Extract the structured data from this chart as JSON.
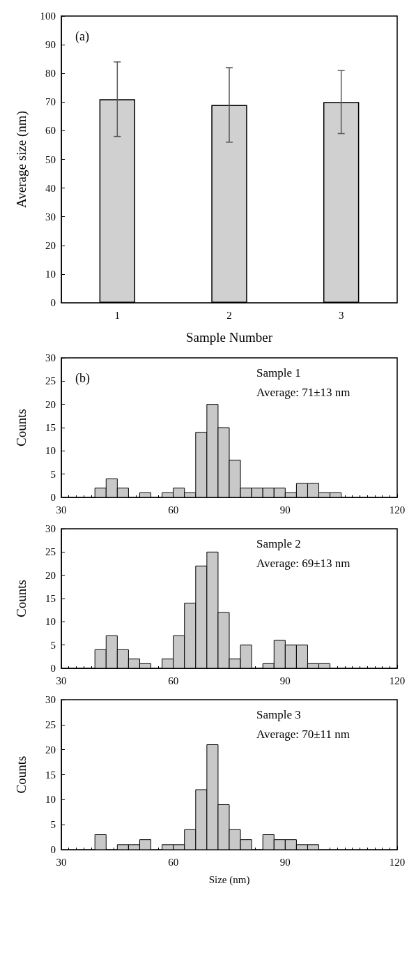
{
  "chart_data": [
    {
      "type": "bar",
      "title": "(a)",
      "xlabel": "Sample Number",
      "ylabel": "Average size (nm)",
      "categories": [
        "1",
        "2",
        "3"
      ],
      "values": [
        71,
        69,
        70
      ],
      "errors": [
        [
          58,
          84
        ],
        [
          56,
          82
        ],
        [
          59,
          81
        ]
      ],
      "color": "#d0d0d0",
      "ylim": [
        0,
        100
      ],
      "yticks": [
        0,
        10,
        20,
        30,
        40,
        50,
        60,
        70,
        80,
        90,
        100
      ]
    },
    {
      "type": "histogram",
      "title": "(b)",
      "ylabel": "Counts",
      "annotations": [
        "Sample 1",
        "Average: 71±13 nm"
      ],
      "color": "#c8c8c8",
      "bins": [
        30,
        33,
        36,
        39,
        42,
        45,
        48,
        51,
        54,
        57,
        60,
        63,
        66,
        69,
        72,
        75,
        78,
        81,
        84,
        87,
        90,
        93,
        96,
        99,
        102,
        105,
        108,
        111,
        114,
        117,
        120
      ],
      "values": [
        0,
        0,
        0,
        2,
        4,
        2,
        0,
        1,
        0,
        1,
        2,
        1,
        14,
        20,
        15,
        8,
        2,
        2,
        2,
        2,
        1,
        3,
        3,
        1,
        1,
        0,
        0,
        0,
        0,
        0
      ],
      "xlim": [
        30,
        120
      ],
      "xticks": [
        30,
        60,
        90,
        120
      ],
      "ylim": [
        0,
        30
      ],
      "yticks": [
        0,
        5,
        10,
        15,
        20,
        25,
        30
      ]
    },
    {
      "type": "histogram",
      "ylabel": "Counts",
      "annotations": [
        "Sample 2",
        "Average: 69±13 nm"
      ],
      "color": "#c8c8c8",
      "bins": [
        30,
        33,
        36,
        39,
        42,
        45,
        48,
        51,
        54,
        57,
        60,
        63,
        66,
        69,
        72,
        75,
        78,
        81,
        84,
        87,
        90,
        93,
        96,
        99,
        102,
        105,
        108,
        111,
        114,
        117,
        120
      ],
      "values": [
        0,
        0,
        0,
        4,
        7,
        4,
        2,
        1,
        0,
        2,
        7,
        14,
        22,
        25,
        12,
        2,
        5,
        0,
        1,
        6,
        5,
        5,
        1,
        1,
        0,
        0,
        0,
        0,
        0,
        0
      ],
      "xlim": [
        30,
        120
      ],
      "xticks": [
        30,
        60,
        90,
        120
      ],
      "ylim": [
        0,
        30
      ],
      "yticks": [
        0,
        5,
        10,
        15,
        20,
        25,
        30
      ]
    },
    {
      "type": "histogram",
      "xlabel": "Size (nm)",
      "ylabel": "Counts",
      "annotations": [
        "Sample 3",
        "Average: 70±11 nm"
      ],
      "color": "#c8c8c8",
      "bins": [
        30,
        33,
        36,
        39,
        42,
        45,
        48,
        51,
        54,
        57,
        60,
        63,
        66,
        69,
        72,
        75,
        78,
        81,
        84,
        87,
        90,
        93,
        96,
        99,
        102,
        105,
        108,
        111,
        114,
        117,
        120
      ],
      "values": [
        0,
        0,
        0,
        3,
        0,
        1,
        1,
        2,
        0,
        1,
        1,
        4,
        12,
        21,
        9,
        4,
        2,
        0,
        3,
        2,
        2,
        1,
        1,
        0,
        0,
        0,
        0,
        0,
        0,
        0
      ],
      "xlim": [
        30,
        120
      ],
      "xticks": [
        30,
        60,
        90,
        120
      ],
      "ylim": [
        0,
        30
      ],
      "yticks": [
        0,
        5,
        10,
        15,
        20,
        25,
        30
      ]
    }
  ]
}
